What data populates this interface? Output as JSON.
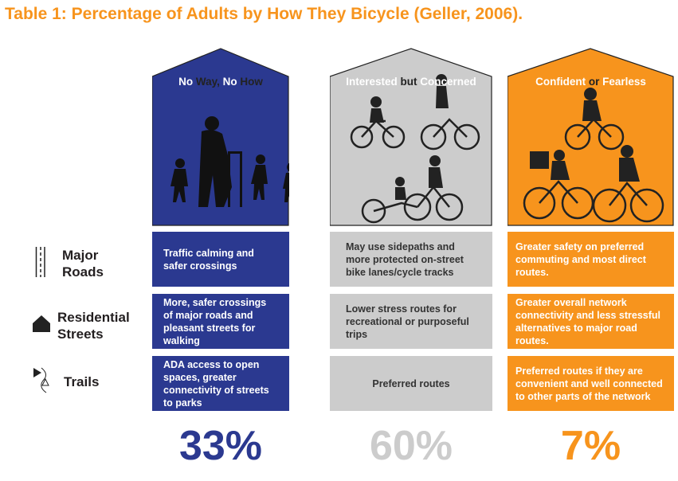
{
  "title": "Table 1: Percentage of Adults by How They Bicycle (Geller, 2006).",
  "colors": {
    "blue": "#2b3990",
    "gray": "#cccccc",
    "orange": "#f7941d"
  },
  "columns": [
    {
      "title_parts": [
        "No ",
        "Way, ",
        "No ",
        "How"
      ],
      "percent": "33%"
    },
    {
      "title_parts": [
        "Interested ",
        "but ",
        "Concerned"
      ],
      "percent": "60%"
    },
    {
      "title_parts": [
        "Confident ",
        "or ",
        "Fearless"
      ],
      "percent": "7%"
    }
  ],
  "rows": [
    {
      "label": [
        "Major",
        "Roads"
      ],
      "icon": "road-lanes-icon",
      "cells": [
        "Traffic calming and safer crossings",
        "May use sidepaths and more protected on-street bike lanes/cycle tracks",
        "Greater safety on preferred commuting and most direct routes."
      ]
    },
    {
      "label": [
        "Residential",
        "Streets"
      ],
      "icon": "house-icon",
      "cells": [
        "More, safer crossings of major roads and pleasant streets for walking",
        "Lower stress routes for recreational or purposeful trips",
        "Greater overall network connectivity and less stressful alternatives to major road routes."
      ]
    },
    {
      "label": [
        "Trails"
      ],
      "icon": "trail-icon",
      "cells": [
        "ADA access to open spaces, greater connectivity of streets to parks",
        "Preferred routes",
        "Preferred routes if they are convenient and well connected to other parts of the network"
      ]
    }
  ]
}
